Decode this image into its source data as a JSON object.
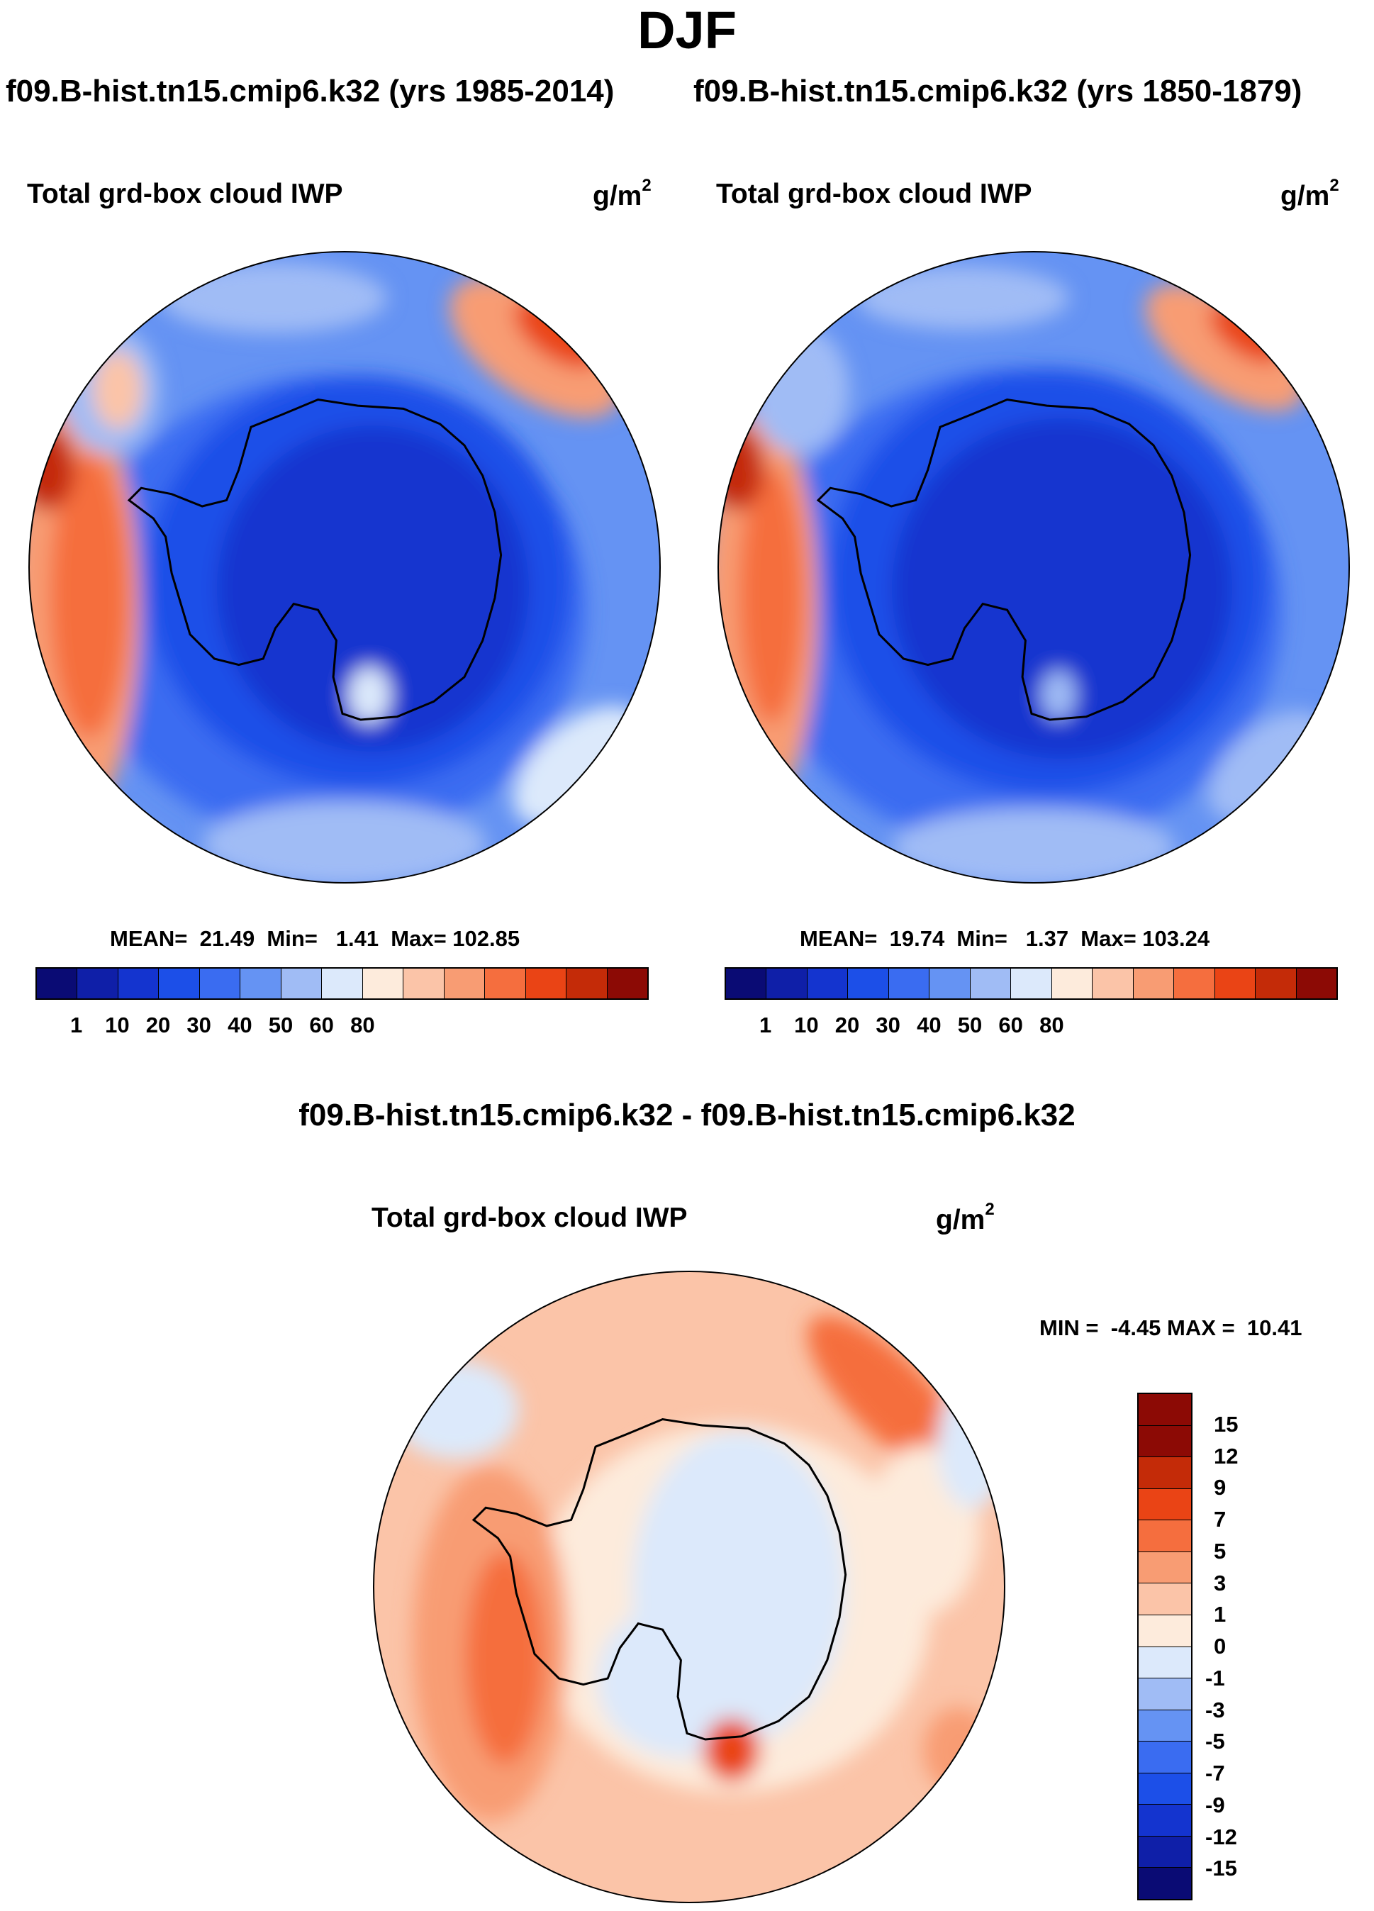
{
  "title": "DJF",
  "panels": [
    {
      "header": "f09.B-hist.tn15.cmip6.k32 (yrs 1985-2014)",
      "variable": "Total grd-box cloud IWP",
      "units_base": "g/m",
      "units_exp": "2",
      "stats": "MEAN=  21.49  Min=   1.41  Max= 102.85",
      "colorbar": {
        "colors": [
          "#0a0b74",
          "#0f1fa8",
          "#1434cf",
          "#1c4fe8",
          "#3a6cf1",
          "#6593f3",
          "#a0bcf5",
          "#dce9fb",
          "#fdebdc",
          "#fbc4a8",
          "#f89c73",
          "#f56e3e",
          "#ea4415",
          "#c42b08",
          "#8c0a05"
        ],
        "labels": [
          "1",
          "10",
          "20",
          "30",
          "40",
          "50",
          "60",
          "80"
        ]
      }
    },
    {
      "header": "f09.B-hist.tn15.cmip6.k32 (yrs 1850-1879)",
      "variable": "Total grd-box cloud IWP",
      "units_base": "g/m",
      "units_exp": "2",
      "stats": "MEAN=  19.74  Min=   1.37  Max= 103.24",
      "colorbar": {
        "colors": [
          "#0a0b74",
          "#0f1fa8",
          "#1434cf",
          "#1c4fe8",
          "#3a6cf1",
          "#6593f3",
          "#a0bcf5",
          "#dce9fb",
          "#fdebdc",
          "#fbc4a8",
          "#f89c73",
          "#f56e3e",
          "#ea4415",
          "#c42b08",
          "#8c0a05"
        ],
        "labels": [
          "1",
          "10",
          "20",
          "30",
          "40",
          "50",
          "60",
          "80"
        ]
      }
    }
  ],
  "difference": {
    "header": "f09.B-hist.tn15.cmip6.k32 - f09.B-hist.tn15.cmip6.k32",
    "variable": "Total grd-box cloud IWP",
    "units_base": "g/m",
    "units_exp": "2",
    "stats": "MIN =  -4.45 MAX =  10.41",
    "colorbar": {
      "colors": [
        "#8c0a05",
        "#c42b08",
        "#ea4415",
        "#f56e3e",
        "#f89c73",
        "#fbc4a8",
        "#fdebdc",
        "#dce9fb",
        "#a0bcf5",
        "#6593f3",
        "#3a6cf1",
        "#1c4fe8",
        "#1434cf",
        "#0f1fa8",
        "#0a0b74"
      ],
      "labels": [
        "15",
        "12",
        "9",
        "7",
        "5",
        "3",
        "1",
        "0",
        "-1",
        "-3",
        "-5",
        "-7",
        "-9",
        "-12",
        "-15"
      ]
    }
  }
}
